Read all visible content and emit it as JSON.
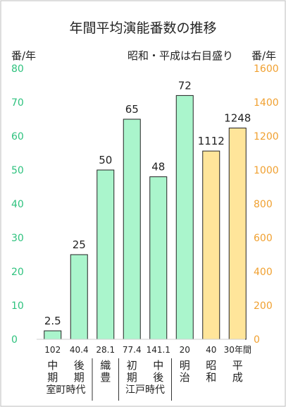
{
  "chart_data": {
    "type": "bar",
    "title": "年間平均演能番数の推移",
    "note": "昭和・平成は右目盛り",
    "left_axis": {
      "unit": "番/年",
      "ylim": [
        0,
        80
      ],
      "ticks": [
        "0",
        "10",
        "20",
        "30",
        "40",
        "50",
        "60",
        "70",
        "80"
      ],
      "color": "#2ec27e"
    },
    "right_axis": {
      "unit": "番/年",
      "ylim": [
        0,
        1600
      ],
      "ticks": [
        "0",
        "200",
        "400",
        "600",
        "800",
        "1000",
        "1200",
        "1400",
        "1600"
      ],
      "color": "#f0a030"
    },
    "grid": false,
    "bars": [
      {
        "value": 2.5,
        "label": "2.5",
        "axis": "left",
        "years": "102",
        "era": [
          "中",
          "期"
        ]
      },
      {
        "value": 25,
        "label": "25",
        "axis": "left",
        "years": "40.4",
        "era": [
          "後",
          "期"
        ]
      },
      {
        "value": 50,
        "label": "50",
        "axis": "left",
        "years": "28.1",
        "era": [
          "織",
          "豊"
        ]
      },
      {
        "value": 65,
        "label": "65",
        "axis": "left",
        "years": "77.4",
        "era": [
          "初",
          "期"
        ]
      },
      {
        "value": 48,
        "label": "48",
        "axis": "left",
        "years": "141.1",
        "era": [
          "中",
          "後"
        ]
      },
      {
        "value": 72,
        "label": "72",
        "axis": "left",
        "years": "20",
        "era": [
          "明",
          "治"
        ]
      },
      {
        "value": 1112,
        "label": "1112",
        "axis": "right",
        "years": "40",
        "era": [
          "昭",
          "和"
        ]
      },
      {
        "value": 1248,
        "label": "1248",
        "axis": "right",
        "years": "30年間",
        "era": [
          "平",
          "成"
        ]
      }
    ],
    "groups": [
      {
        "label": "室町時代",
        "bars": [
          0,
          1
        ]
      },
      {
        "label": "江戸時代",
        "bars": [
          3,
          4
        ]
      }
    ],
    "colors": {
      "left_fill": "#aaf5cc",
      "right_fill": "#ffe59a",
      "bar_stroke": "#222222",
      "text": "#222222"
    }
  }
}
